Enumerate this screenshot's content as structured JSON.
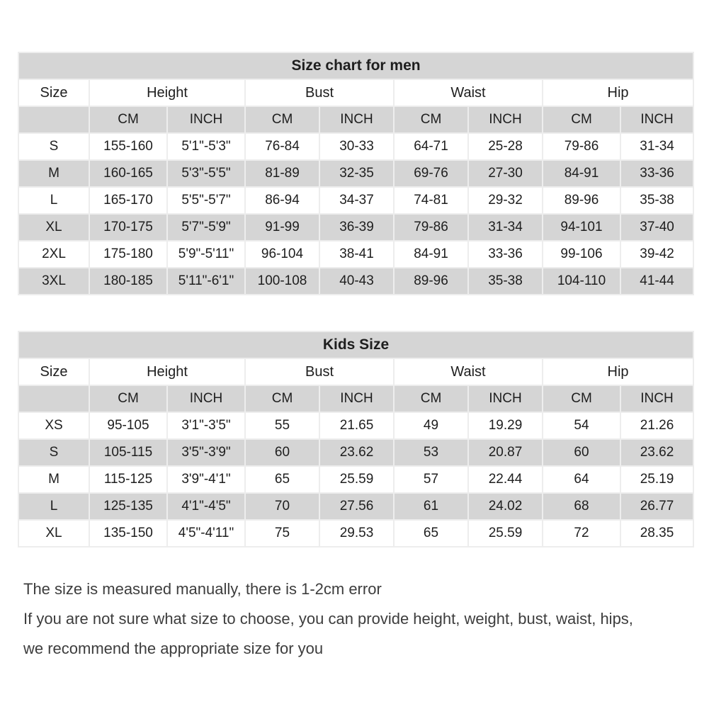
{
  "colors": {
    "cell_gray": "#d5d5d5",
    "cell_white": "#ffffff",
    "border": "#ededed",
    "text": "#1e1e1e",
    "footer_text": "#3d3d3d"
  },
  "tables": [
    {
      "title": "Size chart for men",
      "groups": [
        "Size",
        "Height",
        "Bust",
        "Waist",
        "Hip"
      ],
      "units": [
        "CM",
        "INCH",
        "CM",
        "INCH",
        "CM",
        "INCH",
        "CM",
        "INCH"
      ],
      "rows": [
        {
          "size": "S",
          "cells": [
            "155-160",
            "5'1\"-5'3\"",
            "76-84",
            "30-33",
            "64-71",
            "25-28",
            "79-86",
            "31-34"
          ]
        },
        {
          "size": "M",
          "cells": [
            "160-165",
            "5'3\"-5'5\"",
            "81-89",
            "32-35",
            "69-76",
            "27-30",
            "84-91",
            "33-36"
          ]
        },
        {
          "size": "L",
          "cells": [
            "165-170",
            "5'5\"-5'7\"",
            "86-94",
            "34-37",
            "74-81",
            "29-32",
            "89-96",
            "35-38"
          ]
        },
        {
          "size": "XL",
          "cells": [
            "170-175",
            "5'7\"-5'9\"",
            "91-99",
            "36-39",
            "79-86",
            "31-34",
            "94-101",
            "37-40"
          ]
        },
        {
          "size": "2XL",
          "cells": [
            "175-180",
            "5'9\"-5'11\"",
            "96-104",
            "38-41",
            "84-91",
            "33-36",
            "99-106",
            "39-42"
          ]
        },
        {
          "size": "3XL",
          "cells": [
            "180-185",
            "5'11\"-6'1\"",
            "100-108",
            "40-43",
            "89-96",
            "35-38",
            "104-110",
            "41-44"
          ]
        }
      ]
    },
    {
      "title": "Kids Size",
      "groups": [
        "Size",
        "Height",
        "Bust",
        "Waist",
        "Hip"
      ],
      "units": [
        "CM",
        "INCH",
        "CM",
        "INCH",
        "CM",
        "INCH",
        "CM",
        "INCH"
      ],
      "rows": [
        {
          "size": "XS",
          "cells": [
            "95-105",
            "3'1\"-3'5\"",
            "55",
            "21.65",
            "49",
            "19.29",
            "54",
            "21.26"
          ]
        },
        {
          "size": "S",
          "cells": [
            "105-115",
            "3'5\"-3'9\"",
            "60",
            "23.62",
            "53",
            "20.87",
            "60",
            "23.62"
          ]
        },
        {
          "size": "M",
          "cells": [
            "115-125",
            "3'9\"-4'1\"",
            "65",
            "25.59",
            "57",
            "22.44",
            "64",
            "25.19"
          ]
        },
        {
          "size": "L",
          "cells": [
            "125-135",
            "4'1\"-4'5\"",
            "70",
            "27.56",
            "61",
            "24.02",
            "68",
            "26.77"
          ]
        },
        {
          "size": "XL",
          "cells": [
            "135-150",
            "4'5\"-4'11\"",
            "75",
            "29.53",
            "65",
            "25.59",
            "72",
            "28.35"
          ]
        }
      ]
    }
  ],
  "footer": {
    "lines": [
      "The size is measured manually, there is 1-2cm error",
      "If you are not sure what size to choose, you can provide height, weight, bust, waist, hips,",
      "we recommend the appropriate size for you"
    ]
  }
}
